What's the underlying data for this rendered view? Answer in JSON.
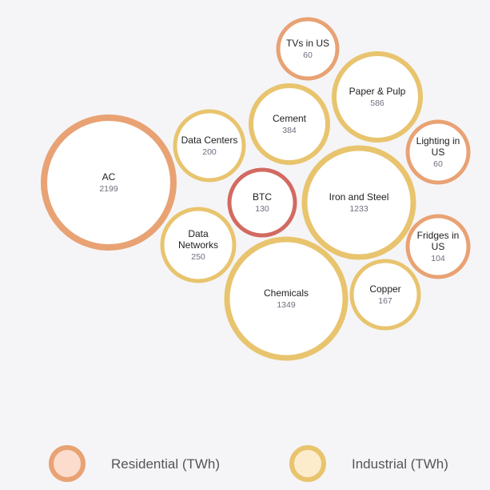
{
  "colors": {
    "background": "#f5f5f7",
    "residential": "#e8a274",
    "industrial": "#e8c46e",
    "highlight": "#d26a61"
  },
  "chart_data": {
    "type": "bubble",
    "title": "",
    "unit": "TWh",
    "legend": {
      "placement": "bottom",
      "items": [
        {
          "label": "Residential (TWh)",
          "category": "residential",
          "fill": "#fcdccc",
          "stroke": "#e8a274"
        },
        {
          "label": "Industrial (TWh)",
          "category": "industrial",
          "fill": "#fceccc",
          "stroke": "#e8c46e"
        }
      ]
    },
    "bubbles": [
      {
        "label_lines": [
          "AC"
        ],
        "value": "2199",
        "category": "residential"
      },
      {
        "label_lines": [
          "TVs in US"
        ],
        "value": "60",
        "category": "residential"
      },
      {
        "label_lines": [
          "Paper & Pulp"
        ],
        "value": "586",
        "category": "industrial"
      },
      {
        "label_lines": [
          "Cement"
        ],
        "value": "384",
        "category": "industrial"
      },
      {
        "label_lines": [
          "Data Centers"
        ],
        "value": "200",
        "category": "industrial"
      },
      {
        "label_lines": [
          "Lighting in",
          "US"
        ],
        "value": "60",
        "category": "residential"
      },
      {
        "label_lines": [
          "BTC"
        ],
        "value": "130",
        "category": "highlight"
      },
      {
        "label_lines": [
          "Iron and Steel"
        ],
        "value": "1233",
        "category": "industrial"
      },
      {
        "label_lines": [
          "Data",
          "Networks"
        ],
        "value": "250",
        "category": "industrial"
      },
      {
        "label_lines": [
          "Fridges in",
          "US"
        ],
        "value": "104",
        "category": "residential"
      },
      {
        "label_lines": [
          "Chemicals"
        ],
        "value": "1349",
        "category": "industrial"
      },
      {
        "label_lines": [
          "Copper"
        ],
        "value": "167",
        "category": "industrial"
      }
    ]
  }
}
